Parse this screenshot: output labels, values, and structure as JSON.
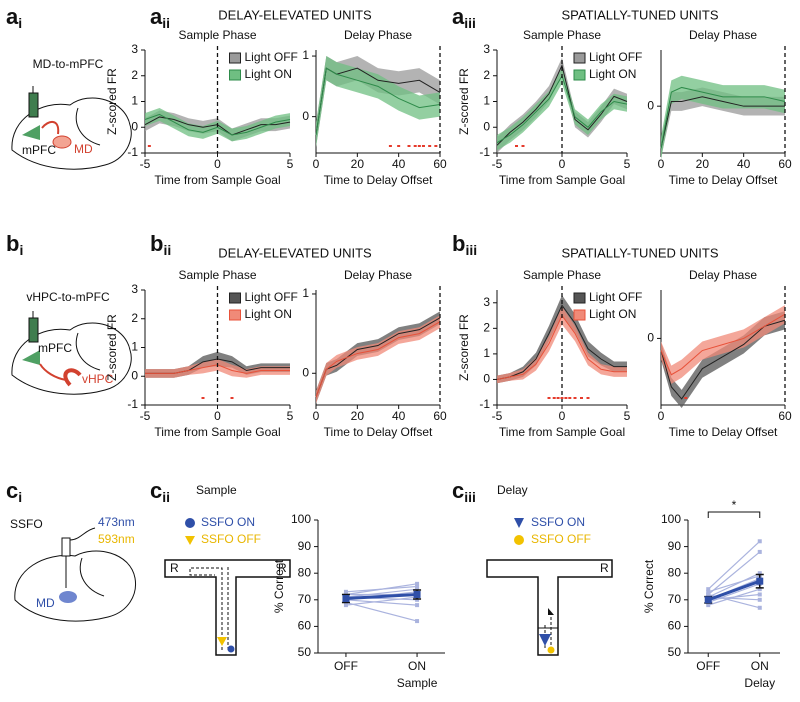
{
  "figure": {
    "a_i": {
      "letter": "a",
      "sub": "i",
      "caption": "MD-to-mPFC",
      "regions": [
        "mPFC",
        "MD"
      ]
    },
    "a_ii": {
      "letter": "a",
      "sub": "ii",
      "title": "DELAY-ELEVATED UNITS"
    },
    "a_iii": {
      "letter": "a",
      "sub": "iii",
      "title": "SPATIALLY-TUNED UNITS"
    },
    "b_i": {
      "letter": "b",
      "sub": "i",
      "caption": "vHPC-to-mPFC",
      "regions": [
        "mPFC",
        "vHPC"
      ]
    },
    "b_ii": {
      "letter": "b",
      "sub": "ii",
      "title": "DELAY-ELEVATED UNITS"
    },
    "b_iii": {
      "letter": "b",
      "sub": "iii",
      "title": "SPATIALLY-TUNED UNITS"
    },
    "c_i": {
      "letter": "c",
      "sub": "i",
      "caption": "SSFO",
      "wavelengths": [
        "473nm",
        "593nm"
      ],
      "region": "MD"
    },
    "c_ii": {
      "letter": "c",
      "sub": "ii",
      "title": "Sample",
      "maze_labels": [
        "R",
        "R"
      ],
      "legend": [
        "SSFO ON",
        "SSFO OFF"
      ]
    },
    "c_iii": {
      "letter": "c",
      "sub": "iii",
      "title": "Delay",
      "maze_labels": [
        "R"
      ],
      "legend": [
        "SSFO ON",
        "SSFO OFF"
      ]
    }
  },
  "chart_data": [
    {
      "type": "line",
      "title": "Sample Phase",
      "xlabel": "Time from Sample Goal",
      "ylabel": "Z-scored FR",
      "x": [
        -5,
        -4,
        -3,
        -2,
        -1,
        0,
        1,
        2,
        3,
        4,
        5
      ],
      "xlim": [
        -5,
        5
      ],
      "xticks": [
        -5,
        0,
        5
      ],
      "ylim": [
        -1,
        3
      ],
      "yticks": [
        -1,
        0,
        1,
        2,
        3
      ],
      "vline": 0,
      "legend": "upper right",
      "series": [
        {
          "name": "Light OFF",
          "color": "#222222",
          "band": "#9a9a9a",
          "values": [
            0.1,
            0.4,
            0.3,
            0.1,
            0.0,
            0.1,
            -0.3,
            -0.1,
            0.1,
            0.1,
            0.2
          ],
          "errors": [
            0.25,
            0.25,
            0.25,
            0.25,
            0.25,
            0.25,
            0.25,
            0.25,
            0.25,
            0.25,
            0.25
          ]
        },
        {
          "name": "Light ON",
          "color": "#2e8b4a",
          "band": "#6fbf82",
          "values": [
            0.3,
            0.5,
            0.2,
            -0.1,
            -0.2,
            0.0,
            -0.3,
            -0.2,
            0.0,
            0.2,
            0.3
          ],
          "errors": [
            0.25,
            0.25,
            0.25,
            0.25,
            0.25,
            0.25,
            0.25,
            0.25,
            0.25,
            0.25,
            0.25
          ]
        }
      ],
      "markers": [
        -4.7
      ],
      "marker_color": "#e53b2c"
    },
    {
      "type": "line",
      "title": "Delay Phase",
      "xlabel": "Time to Delay Offset",
      "x": [
        0,
        5,
        10,
        20,
        30,
        40,
        50,
        60
      ],
      "xlim": [
        0,
        60
      ],
      "xticks": [
        0,
        20,
        40,
        60
      ],
      "ylim": [
        -0.6,
        1.1
      ],
      "yticks": [
        0,
        1
      ],
      "vline": 60,
      "series": [
        {
          "name": "Light OFF",
          "color": "#222222",
          "band": "#9a9a9a",
          "values": [
            -0.3,
            0.8,
            0.7,
            0.8,
            0.6,
            0.55,
            0.6,
            0.4
          ],
          "errors": [
            0.2,
            0.2,
            0.2,
            0.2,
            0.2,
            0.2,
            0.2,
            0.2
          ]
        },
        {
          "name": "Light ON",
          "color": "#2e8b4a",
          "band": "#6fbf82",
          "values": [
            -0.3,
            0.8,
            0.7,
            0.6,
            0.5,
            0.3,
            0.15,
            0.2
          ],
          "errors": [
            0.2,
            0.2,
            0.2,
            0.2,
            0.2,
            0.2,
            0.2,
            0.2
          ]
        }
      ],
      "markers": [
        36,
        40,
        45,
        48,
        50,
        52,
        55,
        58
      ],
      "marker_color": "#e53b2c"
    },
    {
      "type": "line",
      "title": "Sample Phase",
      "xlabel": "Time from Sample Goal",
      "ylabel": "Z-scored FR",
      "x": [
        -5,
        -4,
        -3,
        -2,
        -1,
        0,
        1,
        2,
        3,
        4,
        5
      ],
      "xlim": [
        -5,
        5
      ],
      "xticks": [
        -5,
        0,
        5
      ],
      "ylim": [
        -1,
        3
      ],
      "yticks": [
        -1,
        0,
        1,
        2,
        3
      ],
      "vline": 0,
      "legend": "upper right",
      "series": [
        {
          "name": "Light OFF",
          "color": "#222222",
          "band": "#9a9a9a",
          "values": [
            -0.7,
            -0.2,
            0.2,
            0.7,
            1.3,
            2.4,
            0.3,
            -0.1,
            0.5,
            1.2,
            1.0
          ],
          "errors": [
            0.3,
            0.3,
            0.3,
            0.3,
            0.3,
            0.3,
            0.3,
            0.3,
            0.3,
            0.3,
            0.3
          ]
        },
        {
          "name": "Light ON",
          "color": "#2e8b4a",
          "band": "#6fbf82",
          "values": [
            -0.6,
            -0.3,
            0.1,
            0.6,
            1.1,
            2.0,
            0.4,
            0.0,
            0.6,
            1.0,
            0.9
          ],
          "errors": [
            0.3,
            0.3,
            0.3,
            0.3,
            0.3,
            0.3,
            0.3,
            0.3,
            0.3,
            0.3,
            0.3
          ]
        }
      ],
      "markers": [
        -3.5,
        -3
      ],
      "marker_color": "#e53b2c"
    },
    {
      "type": "line",
      "title": "Delay Phase",
      "xlabel": "Time to Delay Offset",
      "x": [
        0,
        5,
        10,
        20,
        30,
        40,
        50,
        60
      ],
      "xlim": [
        0,
        60
      ],
      "xticks": [
        0,
        20,
        40,
        60
      ],
      "ylim": [
        -1,
        1.2
      ],
      "yticks": [
        0
      ],
      "vline": 60,
      "series": [
        {
          "name": "Light OFF",
          "color": "#222222",
          "band": "#9a9a9a",
          "values": [
            -0.9,
            0.1,
            0.1,
            0.2,
            0.1,
            0.0,
            0.0,
            0.0
          ],
          "errors": [
            0.2,
            0.2,
            0.2,
            0.2,
            0.2,
            0.2,
            0.2,
            0.2
          ]
        },
        {
          "name": "Light ON",
          "color": "#2e8b4a",
          "band": "#6fbf82",
          "values": [
            -0.9,
            0.3,
            0.4,
            0.3,
            0.2,
            0.2,
            0.2,
            0.1
          ],
          "errors": [
            0.25,
            0.25,
            0.25,
            0.25,
            0.25,
            0.25,
            0.25,
            0.25
          ]
        }
      ]
    },
    {
      "type": "line",
      "title": "Sample Phase",
      "xlabel": "Time from Sample Goal",
      "ylabel": "Z-scored FR",
      "x": [
        -5,
        -4,
        -3,
        -2,
        -1,
        0,
        1,
        2,
        3,
        4,
        5
      ],
      "xlim": [
        -5,
        5
      ],
      "xticks": [
        -5,
        0,
        5
      ],
      "ylim": [
        -1,
        3
      ],
      "yticks": [
        -1,
        0,
        1,
        2,
        3
      ],
      "vline": 0,
      "legend": "upper right",
      "series": [
        {
          "name": "Light OFF",
          "color": "#222222",
          "band": "#555555",
          "values": [
            0.1,
            0.1,
            0.1,
            0.2,
            0.5,
            0.6,
            0.5,
            0.2,
            0.3,
            0.3,
            0.3
          ],
          "errors": [
            0.15,
            0.15,
            0.15,
            0.15,
            0.2,
            0.25,
            0.2,
            0.15,
            0.15,
            0.15,
            0.15
          ]
        },
        {
          "name": "Light ON",
          "color": "#e8523a",
          "band": "#f08a78",
          "values": [
            0.1,
            0.1,
            0.1,
            0.2,
            0.3,
            0.4,
            0.2,
            0.1,
            0.2,
            0.2,
            0.2
          ],
          "errors": [
            0.15,
            0.15,
            0.15,
            0.15,
            0.2,
            0.2,
            0.2,
            0.15,
            0.15,
            0.15,
            0.15
          ]
        }
      ],
      "markers": [
        -1,
        1
      ],
      "marker_color": "#e53b2c"
    },
    {
      "type": "line",
      "title": "Delay Phase",
      "xlabel": "Time to Delay Offset",
      "x": [
        0,
        5,
        10,
        20,
        30,
        40,
        50,
        60
      ],
      "xlim": [
        0,
        60
      ],
      "xticks": [
        0,
        20,
        40,
        60
      ],
      "ylim": [
        -0.4,
        1.05
      ],
      "yticks": [
        0,
        1
      ],
      "vline": 60,
      "series": [
        {
          "name": "Light OFF",
          "color": "#222222",
          "band": "#555555",
          "values": [
            -0.3,
            0.05,
            0.1,
            0.3,
            0.35,
            0.5,
            0.55,
            0.7
          ],
          "errors": [
            0.08,
            0.08,
            0.08,
            0.08,
            0.08,
            0.08,
            0.08,
            0.08
          ]
        },
        {
          "name": "Light ON",
          "color": "#e8523a",
          "band": "#f08a78",
          "values": [
            -0.3,
            0.05,
            0.15,
            0.25,
            0.3,
            0.45,
            0.5,
            0.65
          ],
          "errors": [
            0.08,
            0.08,
            0.08,
            0.08,
            0.08,
            0.08,
            0.08,
            0.08
          ]
        }
      ]
    },
    {
      "type": "line",
      "title": "Sample Phase",
      "xlabel": "Time from Sample Goal",
      "ylabel": "Z-scored FR",
      "x": [
        -5,
        -4,
        -3,
        -2,
        -1,
        0,
        1,
        2,
        3,
        4,
        5
      ],
      "xlim": [
        -5,
        5
      ],
      "xticks": [
        -5,
        0,
        5
      ],
      "ylim": [
        -1,
        3.5
      ],
      "yticks": [
        -1,
        0,
        1,
        2,
        3
      ],
      "vline": 0,
      "legend": "upper right",
      "series": [
        {
          "name": "Light OFF",
          "color": "#222222",
          "band": "#555555",
          "values": [
            0.0,
            0.1,
            0.3,
            0.8,
            1.8,
            2.9,
            2.2,
            1.2,
            0.8,
            0.5,
            0.5
          ],
          "errors": [
            0.15,
            0.15,
            0.2,
            0.25,
            0.3,
            0.4,
            0.35,
            0.3,
            0.25,
            0.2,
            0.2
          ]
        },
        {
          "name": "Light ON",
          "color": "#e8523a",
          "band": "#f08a78",
          "values": [
            0.0,
            0.1,
            0.2,
            0.6,
            1.4,
            2.5,
            1.8,
            0.8,
            0.4,
            0.3,
            0.3
          ],
          "errors": [
            0.15,
            0.15,
            0.2,
            0.25,
            0.3,
            0.35,
            0.3,
            0.25,
            0.2,
            0.2,
            0.2
          ]
        }
      ],
      "markers": [
        -1,
        -0.6,
        -0.3,
        0,
        0.3,
        0.6,
        1,
        1.5,
        2
      ],
      "marker_color": "#e53b2c"
    },
    {
      "type": "line",
      "title": "Delay Phase",
      "xlabel": "Time to Delay Offset",
      "x": [
        0,
        5,
        10,
        20,
        30,
        40,
        50,
        60
      ],
      "xlim": [
        0,
        60
      ],
      "xticks": [
        0,
        60
      ],
      "ylim": [
        -1.1,
        0.8
      ],
      "yticks": [
        0
      ],
      "vline": 60,
      "series": [
        {
          "name": "Light OFF",
          "color": "#222222",
          "band": "#555555",
          "values": [
            -0.2,
            -0.8,
            -1.0,
            -0.5,
            -0.3,
            -0.1,
            0.2,
            0.3
          ],
          "errors": [
            0.15,
            0.15,
            0.15,
            0.15,
            0.15,
            0.15,
            0.15,
            0.15
          ]
        },
        {
          "name": "Light ON",
          "color": "#e8523a",
          "band": "#f08a78",
          "values": [
            -0.2,
            -0.6,
            -0.5,
            -0.2,
            -0.1,
            0.0,
            0.2,
            0.4
          ],
          "errors": [
            0.15,
            0.15,
            0.15,
            0.15,
            0.15,
            0.15,
            0.15,
            0.15
          ]
        }
      ],
      "markers": [
        12
      ],
      "marker_color": "#e53b2c"
    },
    {
      "type": "dot",
      "ylabel": "% Correct",
      "categories": [
        "OFF",
        "ON"
      ],
      "x_sublabel": "Sample",
      "ylim": [
        50,
        100
      ],
      "yticks": [
        50,
        60,
        70,
        80,
        90,
        100
      ],
      "color": "#2f4fa8",
      "subject_color": "#aab3de",
      "subjects": [
        [
          73,
          75
        ],
        [
          72,
          76
        ],
        [
          71,
          70
        ],
        [
          70,
          68
        ],
        [
          69,
          62
        ],
        [
          70,
          73
        ],
        [
          68,
          71
        ],
        [
          71,
          74
        ],
        [
          72,
          72
        ]
      ],
      "values": [
        70.5,
        72
      ],
      "errors": [
        1.5,
        1.7
      ]
    },
    {
      "type": "dot",
      "ylabel": "% Correct",
      "categories": [
        "OFF",
        "ON"
      ],
      "x_sublabel": "Delay",
      "ylim": [
        50,
        100
      ],
      "yticks": [
        50,
        60,
        70,
        80,
        90,
        100
      ],
      "color": "#2f4fa8",
      "subject_color": "#aab3de",
      "subjects": [
        [
          74,
          92
        ],
        [
          72,
          88
        ],
        [
          71,
          80
        ],
        [
          70,
          78
        ],
        [
          69,
          76
        ],
        [
          70,
          72
        ],
        [
          68,
          74
        ],
        [
          71,
          70
        ],
        [
          72,
          67
        ],
        [
          73,
          79
        ]
      ],
      "values": [
        70,
        77
      ],
      "errors": [
        1.2,
        2.5
      ],
      "significance": "*"
    }
  ]
}
